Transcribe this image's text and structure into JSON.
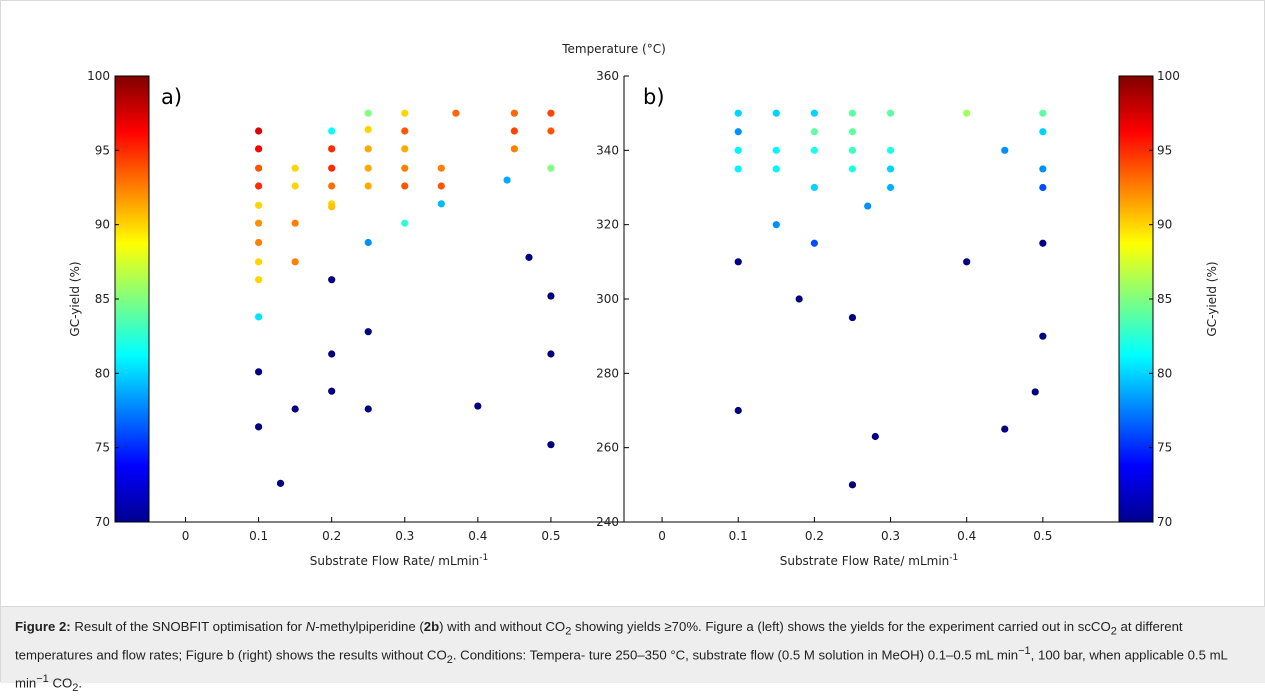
{
  "chart_data": [
    {
      "type": "scatter",
      "panel_label": "a)",
      "xlabel": "Substrate Flow Rate/ mLmin",
      "xlabel_superscript": "-1",
      "ylabel": "GC-yield (%)",
      "xlim": [
        -0.05,
        0.6
      ],
      "ylim": [
        70,
        100
      ],
      "xticks": [
        0,
        0.1,
        0.2,
        0.3,
        0.4,
        0.5
      ],
      "xtick_labels": [
        "0",
        "0.1",
        "0.2",
        "0.3",
        "0.4",
        "0.5"
      ],
      "yticks": [
        70,
        75,
        80,
        85,
        90,
        95,
        100
      ],
      "ytick_labels": [
        "70",
        "75",
        "80",
        "85",
        "90",
        "95",
        "100"
      ],
      "color_encoding": "temperature",
      "color_range": [
        240,
        360
      ],
      "points": [
        {
          "x": 0.1,
          "y": 96.3,
          "c": 349
        },
        {
          "x": 0.1,
          "y": 95.1,
          "c": 345
        },
        {
          "x": 0.1,
          "y": 93.8,
          "c": 335
        },
        {
          "x": 0.1,
          "y": 92.6,
          "c": 340
        },
        {
          "x": 0.1,
          "y": 91.3,
          "c": 320
        },
        {
          "x": 0.1,
          "y": 90.1,
          "c": 328
        },
        {
          "x": 0.1,
          "y": 88.8,
          "c": 330
        },
        {
          "x": 0.1,
          "y": 87.5,
          "c": 320
        },
        {
          "x": 0.1,
          "y": 86.3,
          "c": 320
        },
        {
          "x": 0.1,
          "y": 83.8,
          "c": 282
        },
        {
          "x": 0.1,
          "y": 80.1,
          "c": 240
        },
        {
          "x": 0.1,
          "y": 76.4,
          "c": 240
        },
        {
          "x": 0.13,
          "y": 72.6,
          "c": 240
        },
        {
          "x": 0.15,
          "y": 93.8,
          "c": 320
        },
        {
          "x": 0.15,
          "y": 92.6,
          "c": 320
        },
        {
          "x": 0.15,
          "y": 90.1,
          "c": 330
        },
        {
          "x": 0.15,
          "y": 87.5,
          "c": 330
        },
        {
          "x": 0.15,
          "y": 77.6,
          "c": 240
        },
        {
          "x": 0.2,
          "y": 96.3,
          "c": 285
        },
        {
          "x": 0.2,
          "y": 95.1,
          "c": 340
        },
        {
          "x": 0.2,
          "y": 93.8,
          "c": 340
        },
        {
          "x": 0.2,
          "y": 92.6,
          "c": 332
        },
        {
          "x": 0.2,
          "y": 91.4,
          "c": 320
        },
        {
          "x": 0.2,
          "y": 91.2,
          "c": 322
        },
        {
          "x": 0.2,
          "y": 86.3,
          "c": 240
        },
        {
          "x": 0.2,
          "y": 81.3,
          "c": 240
        },
        {
          "x": 0.2,
          "y": 78.8,
          "c": 240
        },
        {
          "x": 0.25,
          "y": 97.5,
          "c": 300
        },
        {
          "x": 0.25,
          "y": 96.4,
          "c": 320
        },
        {
          "x": 0.25,
          "y": 95.1,
          "c": 325
        },
        {
          "x": 0.25,
          "y": 93.8,
          "c": 325
        },
        {
          "x": 0.25,
          "y": 92.6,
          "c": 325
        },
        {
          "x": 0.25,
          "y": 88.8,
          "c": 272
        },
        {
          "x": 0.25,
          "y": 82.8,
          "c": 240
        },
        {
          "x": 0.25,
          "y": 77.6,
          "c": 240
        },
        {
          "x": 0.3,
          "y": 97.5,
          "c": 320
        },
        {
          "x": 0.3,
          "y": 96.3,
          "c": 335
        },
        {
          "x": 0.3,
          "y": 95.1,
          "c": 325
        },
        {
          "x": 0.3,
          "y": 93.8,
          "c": 330
        },
        {
          "x": 0.3,
          "y": 92.6,
          "c": 335
        },
        {
          "x": 0.3,
          "y": 90.1,
          "c": 290
        },
        {
          "x": 0.35,
          "y": 93.8,
          "c": 330
        },
        {
          "x": 0.35,
          "y": 92.6,
          "c": 335
        },
        {
          "x": 0.35,
          "y": 91.4,
          "c": 277
        },
        {
          "x": 0.37,
          "y": 97.5,
          "c": 333
        },
        {
          "x": 0.4,
          "y": 77.8,
          "c": 240
        },
        {
          "x": 0.44,
          "y": 93.0,
          "c": 275
        },
        {
          "x": 0.45,
          "y": 97.5,
          "c": 333
        },
        {
          "x": 0.45,
          "y": 96.3,
          "c": 337
        },
        {
          "x": 0.45,
          "y": 95.1,
          "c": 330
        },
        {
          "x": 0.47,
          "y": 87.8,
          "c": 240
        },
        {
          "x": 0.5,
          "y": 97.5,
          "c": 337
        },
        {
          "x": 0.5,
          "y": 96.3,
          "c": 335
        },
        {
          "x": 0.5,
          "y": 93.8,
          "c": 300
        },
        {
          "x": 0.5,
          "y": 85.2,
          "c": 240
        },
        {
          "x": 0.5,
          "y": 81.3,
          "c": 240
        },
        {
          "x": 0.5,
          "y": 75.2,
          "c": 240
        }
      ]
    },
    {
      "type": "scatter",
      "panel_label": "b)",
      "title": "Temperature (°C)",
      "xlabel": "Substrate Flow Rate/ mLmin",
      "xlabel_superscript": "-1",
      "xlim": [
        -0.05,
        0.6
      ],
      "ylim": [
        240,
        360
      ],
      "xticks": [
        0,
        0.1,
        0.2,
        0.3,
        0.4,
        0.5
      ],
      "xtick_labels": [
        "0",
        "0.1",
        "0.2",
        "0.3",
        "0.4",
        "0.5"
      ],
      "yticks": [
        240,
        260,
        280,
        300,
        320,
        340,
        360
      ],
      "ytick_labels": [
        "240",
        "260",
        "280",
        "300",
        "320",
        "340",
        "360"
      ],
      "color_encoding": "gc_yield",
      "color_range": [
        70,
        100
      ],
      "points": [
        {
          "x": 0.1,
          "y": 350,
          "c": 80
        },
        {
          "x": 0.1,
          "y": 345,
          "c": 78
        },
        {
          "x": 0.1,
          "y": 340,
          "c": 81
        },
        {
          "x": 0.1,
          "y": 335,
          "c": 81
        },
        {
          "x": 0.1,
          "y": 310,
          "c": 70
        },
        {
          "x": 0.1,
          "y": 270,
          "c": 70
        },
        {
          "x": 0.15,
          "y": 350,
          "c": 80
        },
        {
          "x": 0.15,
          "y": 340,
          "c": 81
        },
        {
          "x": 0.15,
          "y": 335,
          "c": 81
        },
        {
          "x": 0.15,
          "y": 320,
          "c": 78
        },
        {
          "x": 0.18,
          "y": 300,
          "c": 70
        },
        {
          "x": 0.2,
          "y": 350,
          "c": 80
        },
        {
          "x": 0.2,
          "y": 345,
          "c": 84
        },
        {
          "x": 0.2,
          "y": 340,
          "c": 82
        },
        {
          "x": 0.2,
          "y": 330,
          "c": 80
        },
        {
          "x": 0.2,
          "y": 315,
          "c": 76
        },
        {
          "x": 0.25,
          "y": 350,
          "c": 84
        },
        {
          "x": 0.25,
          "y": 345,
          "c": 84
        },
        {
          "x": 0.25,
          "y": 340,
          "c": 83
        },
        {
          "x": 0.25,
          "y": 335,
          "c": 82
        },
        {
          "x": 0.25,
          "y": 295,
          "c": 70
        },
        {
          "x": 0.25,
          "y": 250,
          "c": 70
        },
        {
          "x": 0.27,
          "y": 325,
          "c": 78
        },
        {
          "x": 0.28,
          "y": 263,
          "c": 70
        },
        {
          "x": 0.3,
          "y": 350,
          "c": 84
        },
        {
          "x": 0.3,
          "y": 340,
          "c": 82
        },
        {
          "x": 0.3,
          "y": 335,
          "c": 80
        },
        {
          "x": 0.3,
          "y": 330,
          "c": 79
        },
        {
          "x": 0.4,
          "y": 350,
          "c": 86
        },
        {
          "x": 0.4,
          "y": 310,
          "c": 70
        },
        {
          "x": 0.45,
          "y": 340,
          "c": 78
        },
        {
          "x": 0.45,
          "y": 265,
          "c": 70
        },
        {
          "x": 0.49,
          "y": 275,
          "c": 70
        },
        {
          "x": 0.5,
          "y": 350,
          "c": 84
        },
        {
          "x": 0.5,
          "y": 345,
          "c": 80
        },
        {
          "x": 0.5,
          "y": 335,
          "c": 78
        },
        {
          "x": 0.5,
          "y": 330,
          "c": 76
        },
        {
          "x": 0.5,
          "y": 315,
          "c": 70
        },
        {
          "x": 0.5,
          "y": 290,
          "c": 70
        }
      ]
    },
    {
      "type": "colorbar",
      "label": "",
      "range": [
        70,
        100
      ],
      "ticks": [
        70,
        75,
        80,
        85,
        90,
        95,
        100
      ],
      "tick_labels": [
        "70",
        "75",
        "80",
        "85",
        "90",
        "95",
        "100"
      ]
    },
    {
      "type": "colorbar",
      "label": "GC-yield (%)",
      "range": [
        70,
        100
      ],
      "ticks": [
        70,
        75,
        80,
        85,
        90,
        95,
        100
      ],
      "tick_labels": [
        "70",
        "75",
        "80",
        "85",
        "90",
        "95",
        "100"
      ]
    }
  ],
  "colormap": "jet",
  "caption": {
    "label": "Figure 2:",
    "text_1": " Result of the SNOBFIT optimisation for ",
    "italic_1": "N",
    "text_2": "-methylpiperidine (",
    "compound": "2b",
    "text_3": ") with and without CO",
    "sub_1": "2",
    "text_4": " showing yields ≥70%. Figure a (left) shows the yields for the experiment carried out in scCO",
    "sub_2": "2",
    "text_5": " at different temperatures and flow rates; Figure b (right) shows the results without CO",
    "sub_3": "2",
    "text_6": ". Conditions: Tempera- ture 250–350 °C, substrate flow (0.5 M solution in MeOH) 0.1–0.5 mL min",
    "sup_1": "−1",
    "text_7": ", 100 bar, when applicable 0.5 mL min",
    "sup_2": "−1",
    "text_8": " CO",
    "sub_4": "2",
    "text_9": "."
  }
}
